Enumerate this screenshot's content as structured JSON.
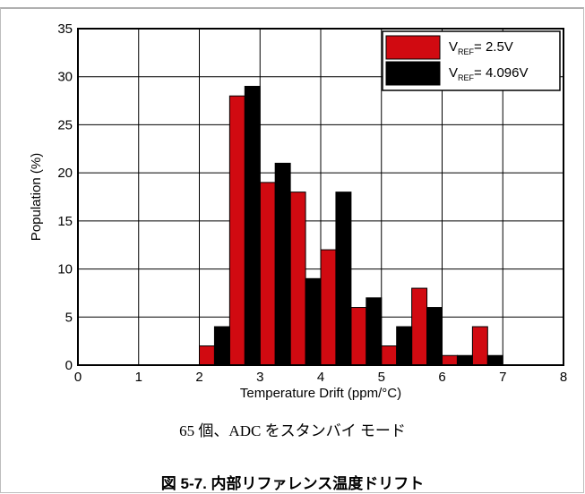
{
  "chart_data": {
    "type": "bar",
    "categories": [
      2,
      2.5,
      3,
      3.5,
      4,
      4.5,
      5,
      5.5,
      6,
      6.5,
      7,
      7.5
    ],
    "series": [
      {
        "legend_main": "V",
        "legend_sub": "REF",
        "legend_rest": "= 2.5V",
        "color": "#d10a11",
        "values": [
          2,
          28,
          19,
          18,
          12,
          6,
          2,
          8,
          1,
          4,
          0,
          0
        ]
      },
      {
        "legend_main": "V",
        "legend_sub": "REF",
        "legend_rest": "= 4.096V",
        "color": "#000000",
        "values": [
          4,
          29,
          21,
          9,
          18,
          7,
          4,
          6,
          1,
          1,
          0,
          0
        ]
      }
    ],
    "xlabel": "Temperature Drift (ppm/°C)",
    "ylabel": "Population (%)",
    "xlim": [
      0,
      8
    ],
    "ylim": [
      0,
      35
    ],
    "xticks": [
      "0",
      "1",
      "2",
      "3",
      "4",
      "5",
      "6",
      "7",
      "8"
    ],
    "yticks": [
      "0",
      "5",
      "10",
      "15",
      "20",
      "25",
      "30",
      "35"
    ],
    "grid": true,
    "legend_position": "top-right"
  },
  "note": "65 個、ADC をスタンバイ モード",
  "caption": "図 5-7. 内部リファレンス温度ドリフト"
}
